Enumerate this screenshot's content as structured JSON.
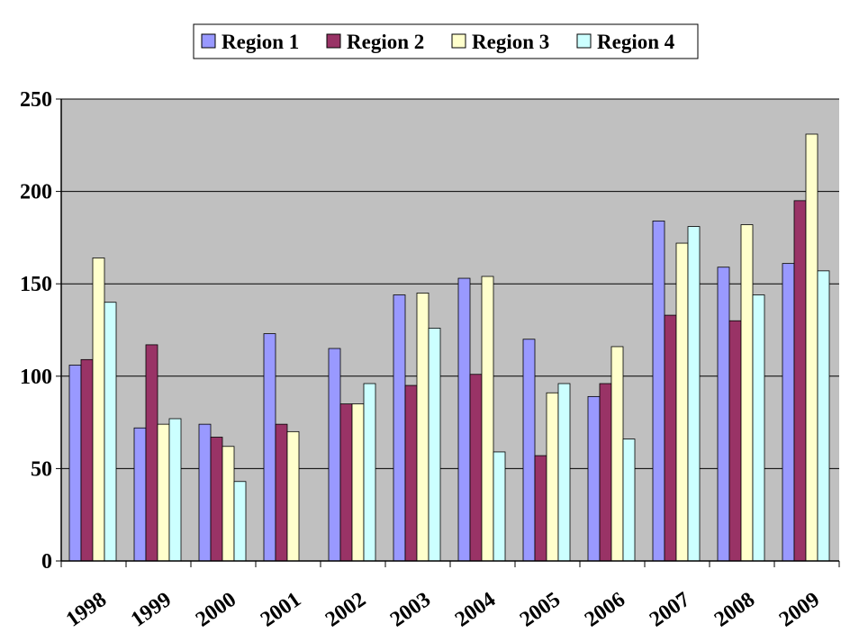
{
  "chart_data": {
    "type": "bar",
    "title": "",
    "xlabel": "",
    "ylabel": "",
    "categories": [
      "1998",
      "1999",
      "2000",
      "2001",
      "2002",
      "2003",
      "2004",
      "2005",
      "2006",
      "2007",
      "2008",
      "2009"
    ],
    "series": [
      {
        "name": "Region 1",
        "color": "#9999ff",
        "values": [
          106,
          72,
          74,
          123,
          115,
          144,
          153,
          120,
          89,
          184,
          159,
          161
        ]
      },
      {
        "name": "Region 2",
        "color": "#993366",
        "values": [
          109,
          117,
          67,
          74,
          85,
          95,
          101,
          57,
          96,
          133,
          130,
          195
        ]
      },
      {
        "name": "Region 3",
        "color": "#ffffcc",
        "values": [
          164,
          74,
          62,
          70,
          85,
          145,
          154,
          91,
          116,
          172,
          182,
          231
        ]
      },
      {
        "name": "Region 4",
        "color": "#ccffff",
        "values": [
          140,
          77,
          43,
          0,
          96,
          126,
          59,
          96,
          66,
          181,
          144,
          157
        ]
      }
    ],
    "ylim": [
      0,
      250
    ],
    "yticks": [
      0,
      50,
      100,
      150,
      200,
      250
    ],
    "grid": true,
    "legend_position": "top",
    "plot_background": "#c0c0c0"
  }
}
